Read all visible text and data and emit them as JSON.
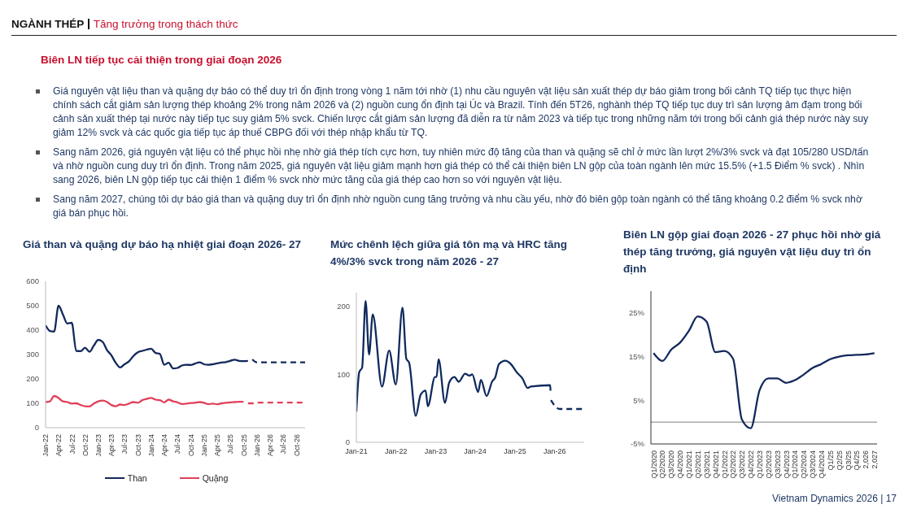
{
  "chart_data": [
    {
      "type": "other",
      "title": "NGÀNH THÉP",
      "subtitle": "Tăng trưởng trong thách thức",
      "annotations": [
        "Biên LN tiếp tục cải thiện trong giai đoạn 2026",
        "Giá nguyên vật liệu than và quặng dự báo có thể duy trì ổn định trong vòng 1 năm tới nhờ (1) nhu cầu nguyên vật liệu sản xuất thép dự báo giảm trong bối cảnh TQ tiếp tục thực hiện chính sách cắt giảm sản lượng thép khoảng 2% trong năm 2026 và (2) nguồn cung ổn định tại Úc và Brazil. Tính đến 5T26, nghành thép TQ tiếp tục duy trì sản lượng âm đạm trong bối cảnh sản xuất thép tại nước này tiếp tục suy giảm 5% svck. Chiến lược cắt giảm sản lượng đã diễn ra từ năm 2023 và tiếp tục trong những năm tới trong bối cảnh giá thép nước này suy giảm 12% svck và các quốc gia tiếp tục áp thuế CBPG đối với thép nhập khẩu từ TQ.",
        "Sang năm 2026, giá nguyên vật liệu có thể phục hồi nhẹ nhờ giá thép tích cực hơn, tuy nhiên mức độ tăng của than và quặng sẽ chỉ ở mức lần lượt 2%/3% svck và đạt 105/280 USD/tấn và nhờ nguồn cung duy trì ổn định. Trong năm 2025, giá nguyên vật liệu giảm mạnh hơn giá thép có thể cải thiện biên LN gộp của toàn ngành lên mức 15.5% (+1.5 Điểm % svck) . Nhìn sang 2026, biên LN gộp tiếp tục cải thiện 1 điểm % svck nhờ mức tăng của giá thép cao hơn so với nguyên vật liệu.",
        "Sang năm 2027, chúng tôi dự báo giá than và quặng duy trì ổn định nhờ nguồn cung tăng trưởng và nhu cầu yếu, nhờ đó biên gộp toàn ngành có thể tăng khoảng 0.2 điểm % svck nhờ giá bán phục hồi.",
        "Vietnam Dynamics 2026 | 17"
      ]
    },
    {
      "type": "line",
      "title": "Giá than và quặng dự báo hạ nhiệt giai đoạn 2026- 27",
      "legend": "bottom",
      "x": [
        "2022-01",
        "2022-02",
        "2022-03",
        "2022-04",
        "2022-05",
        "2022-06",
        "2022-07",
        "2022-08",
        "2022-09",
        "2022-10",
        "2022-11",
        "2022-12",
        "2023-01",
        "2023-02",
        "2023-03",
        "2023-04",
        "2023-05",
        "2023-06",
        "2023-07",
        "2023-08",
        "2023-09",
        "2023-10",
        "2023-11",
        "2023-12",
        "2024-01",
        "2024-02",
        "2024-03",
        "2024-04",
        "2024-05",
        "2024-06",
        "2024-07",
        "2024-08",
        "2024-09",
        "2024-10",
        "2024-11",
        "2024-12",
        "2025-01",
        "2025-02",
        "2025-03",
        "2025-04",
        "2025-05",
        "2025-06",
        "2025-07",
        "2025-08",
        "2025-09",
        "2025-10",
        "2025-11"
      ],
      "xlim": [
        "2022-01",
        "2026-12"
      ],
      "xticks": [
        {
          "value": "2022-01",
          "label": "Jan-22"
        },
        {
          "value": "2022-04",
          "label": "Apr-22"
        },
        {
          "value": "2022-07",
          "label": "Jul-22"
        },
        {
          "value": "2022-10",
          "label": "Oct-22"
        },
        {
          "value": "2023-01",
          "label": "Jan-23"
        },
        {
          "value": "2023-04",
          "label": "Apr-23"
        },
        {
          "value": "2023-07",
          "label": "Jul-23"
        },
        {
          "value": "2023-10",
          "label": "Oct-23"
        },
        {
          "value": "2024-01",
          "label": "Jan-24"
        },
        {
          "value": "2024-04",
          "label": "Apr-24"
        },
        {
          "value": "2024-07",
          "label": "Jul-24"
        },
        {
          "value": "2024-10",
          "label": "Oct-24"
        },
        {
          "value": "2025-01",
          "label": "Jan-25"
        },
        {
          "value": "2025-04",
          "label": "Apr-25"
        },
        {
          "value": "2025-07",
          "label": "Jul-25"
        },
        {
          "value": "2025-10",
          "label": "Oct-25"
        },
        {
          "value": "2026-01",
          "label": "Jan-26"
        },
        {
          "value": "2026-04",
          "label": "Apr-26"
        },
        {
          "value": "2026-07",
          "label": "Jul-26"
        },
        {
          "value": "2026-10",
          "label": "Oct-26"
        }
      ],
      "ylim": [
        0,
        600
      ],
      "yticks": [
        0,
        100,
        200,
        300,
        400,
        500,
        600
      ],
      "series": [
        {
          "name": "Than",
          "color": "#13285c",
          "values": [
            420,
            396,
            394,
            500,
            464,
            427,
            430,
            315,
            314,
            328,
            311,
            337,
            360,
            351,
            319,
            297,
            266,
            247,
            260,
            272,
            294,
            309,
            315,
            320,
            324,
            306,
            303,
            258,
            266,
            243,
            245,
            255,
            258,
            257,
            263,
            268,
            260,
            258,
            260,
            264,
            267,
            269,
            274,
            279,
            274,
            273,
            274
          ]
        },
        {
          "name": "Quặng",
          "color": "#e0405a",
          "values": [
            105,
            108,
            130,
            122,
            108,
            105,
            99,
            100,
            93,
            88,
            87,
            99,
            108,
            111,
            106,
            93,
            88,
            95,
            93,
            99,
            105,
            102,
            113,
            118,
            122,
            115,
            113,
            104,
            115,
            108,
            104,
            97,
            99,
            101,
            102,
            105,
            102,
            96,
            99,
            96,
            100,
            102,
            104,
            105,
            106,
            106,
            null
          ]
        },
        {
          "color": "#13285c",
          "line_style": "dashed",
          "x": [
            "2025-12",
            "2026-01",
            "2026-04",
            "2026-07",
            "2026-10",
            "2026-12"
          ],
          "values": [
            280,
            268,
            268,
            268,
            268,
            268
          ]
        },
        {
          "color": "#e0405a",
          "line_style": "dashed",
          "x": [
            "2025-11",
            "2025-12",
            "2026-01",
            "2026-04",
            "2026-07",
            "2026-10",
            "2026-12"
          ],
          "values": [
            100,
            100,
            103,
            103,
            103,
            103,
            103
          ]
        }
      ]
    },
    {
      "type": "line",
      "title": "Mức chênh lệch giữa giá tôn mạ và HRC tăng 4%/3% svck trong năm 2026 - 27",
      "xlim": [
        "2021-01-01",
        "2026-09-30"
      ],
      "xticks": [
        {
          "value": "2021-01-01",
          "label": "Jan-21"
        },
        {
          "value": "2022-01-01",
          "label": "Jan-22"
        },
        {
          "value": "2023-01-01",
          "label": "Jan-23"
        },
        {
          "value": "2024-01-01",
          "label": "Jan-24"
        },
        {
          "value": "2025-01-01",
          "label": "Jan-25"
        },
        {
          "value": "2026-01-01",
          "label": "Jan-26"
        }
      ],
      "ylim": [
        0,
        220
      ],
      "yticks": [
        0,
        100,
        200
      ],
      "series": [
        {
          "color": "#0f2a5e",
          "x": [
            "2021-01-01",
            "2021-01-27",
            "2021-02-23",
            "2021-03-27",
            "2021-04-28",
            "2021-06-01",
            "2021-08-25",
            "2021-10-30",
            "2021-12-30",
            "2022-03-02",
            "2022-04-06",
            "2022-05-02",
            "2022-07-02",
            "2022-08-16",
            "2022-10-01",
            "2022-10-21",
            "2022-12-26",
            "2023-01-09",
            "2023-01-28",
            "2023-03-28",
            "2023-05-06",
            "2023-06-23",
            "2023-08-02",
            "2023-09-29",
            "2023-11-08",
            "2023-12-04",
            "2024-01-27",
            "2024-02-22",
            "2024-04-14",
            "2024-06-06",
            "2024-07-02",
            "2024-08-06",
            "2024-10-03",
            "2024-11-25",
            "2025-01-17",
            "2025-03-10",
            "2025-04-27",
            "2025-05-28",
            "2025-11-21",
            "2025-11-24"
          ],
          "values": [
            45,
            103,
            110,
            208,
            129,
            188,
            82,
            135,
            85,
            198,
            123,
            117,
            39,
            70,
            76,
            53,
            96,
            96,
            122,
            58,
            88,
            96,
            89,
            101,
            98,
            100,
            74,
            92,
            68,
            90,
            95,
            115,
            120,
            115,
            103,
            94,
            80,
            82,
            84,
            76
          ]
        },
        {
          "color": "#0f2a5e",
          "line_style": "dashed",
          "x": [
            "2025-11-28",
            "2025-12-27",
            "2026-02-18",
            "2026-09-29"
          ],
          "values": [
            62,
            55,
            49,
            49
          ]
        }
      ]
    },
    {
      "type": "line",
      "title": "Biên LN gộp giai đoạn 2026 - 27 phục hồi nhờ giá thép tăng trưởng, giá nguyên vật liệu duy trì ổn định",
      "categories": [
        "Q1/2020",
        "Q2/2020",
        "Q3/2020",
        "Q4/2020",
        "Q1/2021",
        "Q2/2021",
        "Q3/2021",
        "Q4/2021",
        "Q1/2022",
        "Q2/2022",
        "Q3/2022",
        "Q4/2022",
        "Q1/2023",
        "Q2/2023",
        "Q3/2023",
        "Q4/2023",
        "Q1/2024",
        "Q2/2024",
        "Q3/2024",
        "Q4/2024",
        "Q1/25",
        "Q2/25",
        "Q3/25",
        "Q4/25",
        "2,026",
        "2,027"
      ],
      "ylim": [
        -5,
        30
      ],
      "yticks": [
        {
          "value": -5,
          "label": "-5%"
        },
        {
          "value": 5,
          "label": "5%"
        },
        {
          "value": 15,
          "label": "15%"
        },
        {
          "value": 25,
          "label": "25%"
        }
      ],
      "ref_lines": [
        {
          "axis": "y",
          "value": 0,
          "color": "#7f7f7f"
        }
      ],
      "series": [
        {
          "color": "#13285c",
          "values": [
            15.8,
            14.0,
            16.6,
            18.2,
            20.9,
            24.2,
            23.0,
            16.0,
            16.3,
            14.5,
            0.6,
            -1.4,
            7.3,
            10.0,
            10.0,
            9.0,
            9.6,
            10.9,
            12.4,
            13.3,
            14.4,
            15.0,
            15.3,
            15.4,
            15.5,
            15.8
          ]
        }
      ]
    }
  ]
}
